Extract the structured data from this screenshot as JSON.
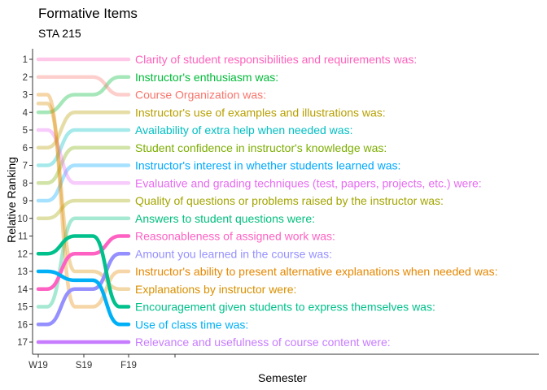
{
  "chart_data": {
    "type": "line",
    "title": "Formative Items",
    "subtitle": "STA 215",
    "xlabel": "Semester",
    "ylabel": "Relative Ranking",
    "x": [
      "W19",
      "S19",
      "F19"
    ],
    "y_ticks": [
      1,
      2,
      3,
      4,
      5,
      6,
      7,
      8,
      9,
      10,
      11,
      12,
      13,
      14,
      15,
      16,
      17
    ],
    "y_reversed": true,
    "grid": false,
    "legend": "labels at line ends",
    "highlighted": [
      "Reasonableness of assigned work was:",
      "Amount you learned in the course was:",
      "Encouragement given students to express themselves was:",
      "Use of class time was:",
      "Relevance and usefulness of course content were:"
    ],
    "series": [
      {
        "name": "Clarity of student responsibilities and requirements was:",
        "values": [
          1,
          1,
          1
        ],
        "color": "#FF62BC"
      },
      {
        "name": "Instructor's enthusiasm was:",
        "values": [
          4,
          3,
          2
        ],
        "color": "#00BA38"
      },
      {
        "name": "Course Organization was:",
        "values": [
          2,
          2,
          3
        ],
        "color": "#F8766D"
      },
      {
        "name": "Instructor's use of examples and illustrations was:",
        "values": [
          6,
          4,
          4
        ],
        "color": "#B79F00"
      },
      {
        "name": "Availability of extra help when needed was:",
        "values": [
          7,
          5,
          5
        ],
        "color": "#00BFC4"
      },
      {
        "name": "Student confidence in instructor's knowledge was:",
        "values": [
          8,
          6,
          6
        ],
        "color": "#7CAE00"
      },
      {
        "name": "Instructor's interest in whether students learned was:",
        "values": [
          9,
          7,
          7
        ],
        "color": "#00A9FF"
      },
      {
        "name": "Evaluative and grading techniques (test, papers, projects, etc.) were:",
        "values": [
          5,
          8,
          8
        ],
        "color": "#E76BF3"
      },
      {
        "name": "Quality of questions or problems raised by the instructor was:",
        "values": [
          10,
          9,
          9
        ],
        "color": "#A3A500"
      },
      {
        "name": "Answers to student questions were:",
        "values": [
          15,
          10,
          10
        ],
        "color": "#00BF7D"
      },
      {
        "name": "Reasonableness of assigned work was:",
        "values": [
          14,
          12,
          11
        ],
        "color": "#FF61C3"
      },
      {
        "name": "Amount you learned in the course was:",
        "values": [
          16,
          14,
          12
        ],
        "color": "#9590FF"
      },
      {
        "name": "Instructor's ability to present alternative explanations when needed was:",
        "values": [
          3,
          15,
          13
        ],
        "color": "#E58700"
      },
      {
        "name": "Explanations by instructor were:",
        "values": [
          3.5,
          13,
          14
        ],
        "color": "#D89000"
      },
      {
        "name": "Encouragement given students to express themselves was:",
        "values": [
          12,
          11,
          15
        ],
        "color": "#00C08B"
      },
      {
        "name": "Use of class time was:",
        "values": [
          13,
          13.5,
          16
        ],
        "color": "#00B0F6"
      },
      {
        "name": "Relevance and usefulness of course content were:",
        "values": [
          17,
          17,
          17
        ],
        "color": "#C77CFF"
      }
    ]
  }
}
